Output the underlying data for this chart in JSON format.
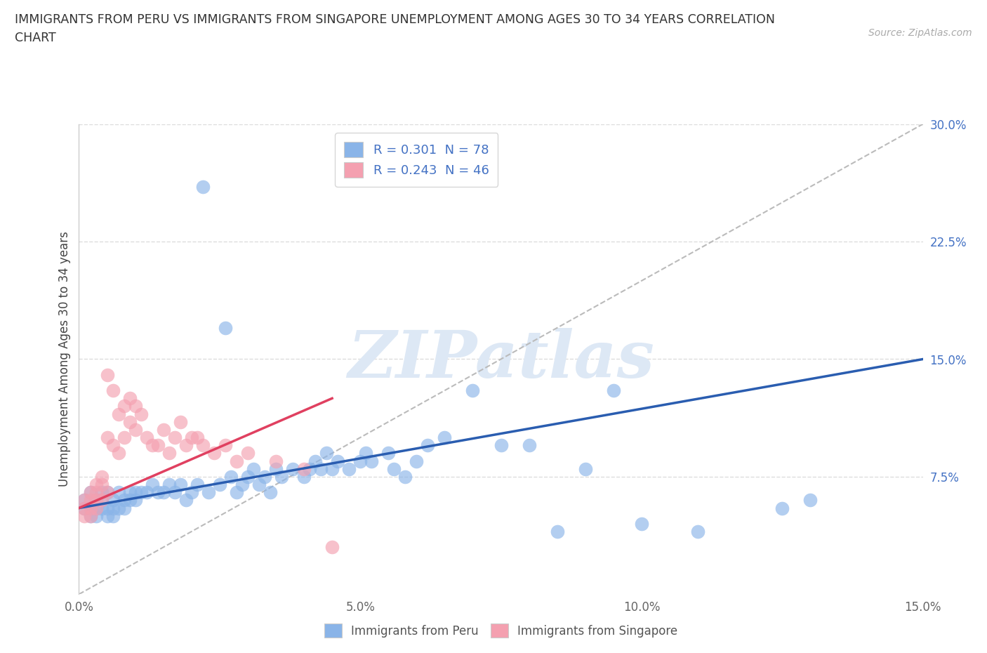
{
  "title_line1": "IMMIGRANTS FROM PERU VS IMMIGRANTS FROM SINGAPORE UNEMPLOYMENT AMONG AGES 30 TO 34 YEARS CORRELATION",
  "title_line2": "CHART",
  "source": "Source: ZipAtlas.com",
  "ylabel": "Unemployment Among Ages 30 to 34 years",
  "xlim": [
    0.0,
    0.15
  ],
  "ylim": [
    0.0,
    0.3
  ],
  "xticks": [
    0.0,
    0.05,
    0.1,
    0.15
  ],
  "xticklabels": [
    "0.0%",
    "5.0%",
    "10.0%",
    "15.0%"
  ],
  "yticks_right": [
    0.075,
    0.15,
    0.225,
    0.3
  ],
  "yticklabels_right": [
    "7.5%",
    "15.0%",
    "22.5%",
    "30.0%"
  ],
  "peru_R": 0.301,
  "peru_N": 78,
  "singapore_R": 0.243,
  "singapore_N": 46,
  "peru_color": "#8ab4e8",
  "singapore_color": "#f4a0b0",
  "peru_line_color": "#2a5db0",
  "singapore_line_color": "#e04060",
  "diag_line_color": "#bbbbbb",
  "legend_label_peru": "Immigrants from Peru",
  "legend_label_singapore": "Immigrants from Singapore",
  "watermark": "ZIPatlas",
  "peru_x": [
    0.001,
    0.001,
    0.002,
    0.002,
    0.002,
    0.003,
    0.003,
    0.003,
    0.004,
    0.004,
    0.004,
    0.005,
    0.005,
    0.005,
    0.006,
    0.006,
    0.006,
    0.007,
    0.007,
    0.008,
    0.008,
    0.009,
    0.009,
    0.01,
    0.01,
    0.011,
    0.012,
    0.013,
    0.014,
    0.015,
    0.016,
    0.017,
    0.018,
    0.019,
    0.02,
    0.021,
    0.022,
    0.023,
    0.025,
    0.026,
    0.027,
    0.028,
    0.029,
    0.03,
    0.031,
    0.032,
    0.033,
    0.034,
    0.035,
    0.036,
    0.038,
    0.04,
    0.041,
    0.042,
    0.043,
    0.044,
    0.045,
    0.046,
    0.048,
    0.05,
    0.051,
    0.052,
    0.055,
    0.056,
    0.058,
    0.06,
    0.062,
    0.065,
    0.07,
    0.075,
    0.08,
    0.085,
    0.09,
    0.095,
    0.1,
    0.11,
    0.125,
    0.13
  ],
  "peru_y": [
    0.055,
    0.06,
    0.05,
    0.055,
    0.065,
    0.05,
    0.055,
    0.06,
    0.055,
    0.06,
    0.065,
    0.05,
    0.055,
    0.065,
    0.05,
    0.055,
    0.06,
    0.055,
    0.065,
    0.055,
    0.06,
    0.06,
    0.065,
    0.06,
    0.065,
    0.065,
    0.065,
    0.07,
    0.065,
    0.065,
    0.07,
    0.065,
    0.07,
    0.06,
    0.065,
    0.07,
    0.26,
    0.065,
    0.07,
    0.17,
    0.075,
    0.065,
    0.07,
    0.075,
    0.08,
    0.07,
    0.075,
    0.065,
    0.08,
    0.075,
    0.08,
    0.075,
    0.08,
    0.085,
    0.08,
    0.09,
    0.08,
    0.085,
    0.08,
    0.085,
    0.09,
    0.085,
    0.09,
    0.08,
    0.075,
    0.085,
    0.095,
    0.1,
    0.13,
    0.095,
    0.095,
    0.04,
    0.08,
    0.13,
    0.045,
    0.04,
    0.055,
    0.06
  ],
  "singapore_x": [
    0.001,
    0.001,
    0.001,
    0.002,
    0.002,
    0.002,
    0.002,
    0.003,
    0.003,
    0.003,
    0.003,
    0.004,
    0.004,
    0.004,
    0.005,
    0.005,
    0.005,
    0.006,
    0.006,
    0.007,
    0.007,
    0.008,
    0.008,
    0.009,
    0.009,
    0.01,
    0.01,
    0.011,
    0.012,
    0.013,
    0.014,
    0.015,
    0.016,
    0.017,
    0.018,
    0.019,
    0.02,
    0.021,
    0.022,
    0.024,
    0.026,
    0.028,
    0.03,
    0.035,
    0.04,
    0.045
  ],
  "singapore_y": [
    0.055,
    0.06,
    0.05,
    0.06,
    0.065,
    0.055,
    0.05,
    0.065,
    0.06,
    0.055,
    0.07,
    0.06,
    0.07,
    0.075,
    0.065,
    0.1,
    0.14,
    0.095,
    0.13,
    0.09,
    0.115,
    0.1,
    0.12,
    0.11,
    0.125,
    0.105,
    0.12,
    0.115,
    0.1,
    0.095,
    0.095,
    0.105,
    0.09,
    0.1,
    0.11,
    0.095,
    0.1,
    0.1,
    0.095,
    0.09,
    0.095,
    0.085,
    0.09,
    0.085,
    0.08,
    0.03
  ],
  "peru_line_x0": 0.0,
  "peru_line_x1": 0.15,
  "peru_line_y0": 0.055,
  "peru_line_y1": 0.15,
  "sing_line_x0": 0.0,
  "sing_line_x1": 0.045,
  "sing_line_y0": 0.055,
  "sing_line_y1": 0.125
}
